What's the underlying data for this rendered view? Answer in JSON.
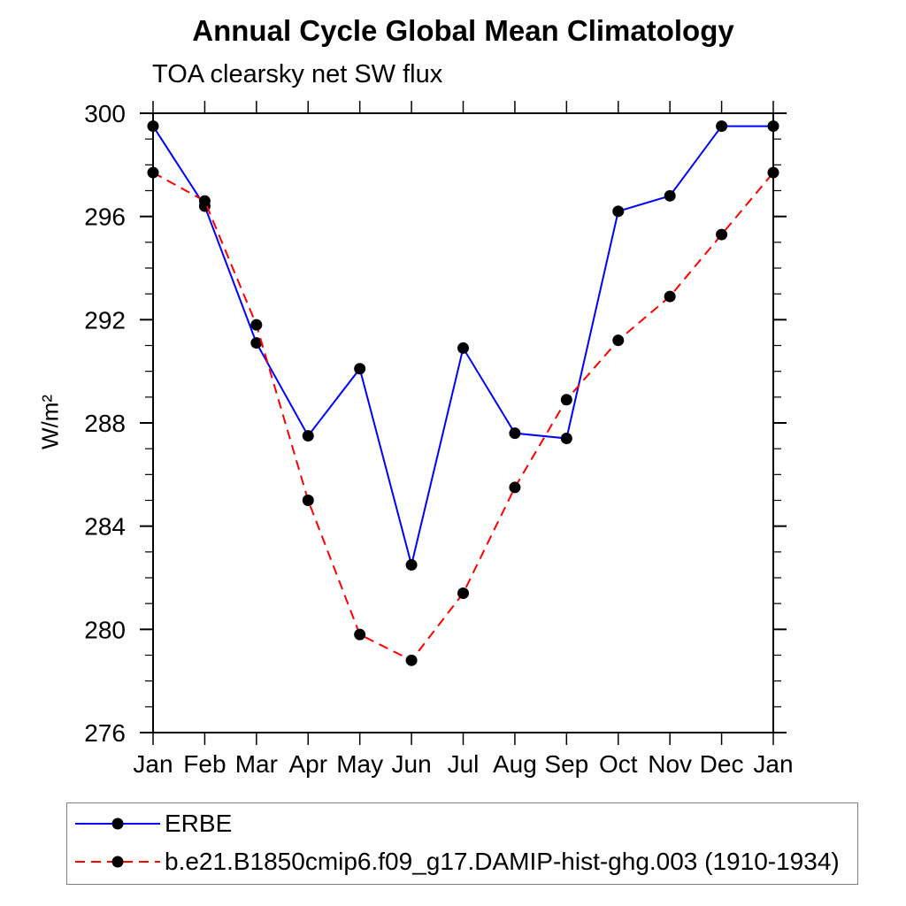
{
  "chart_data": {
    "type": "line",
    "title": "Annual Cycle Global Mean Climatology",
    "subtitle": "TOA clearsky net SW flux",
    "ylabel": "W/m²",
    "categories": [
      "Jan",
      "Feb",
      "Mar",
      "Apr",
      "May",
      "Jun",
      "Jul",
      "Aug",
      "Sep",
      "Oct",
      "Nov",
      "Dec",
      "Jan"
    ],
    "ylim": [
      276,
      300
    ],
    "ytick_major": 4,
    "ytick_minor": 1,
    "grid": false,
    "legend_position": "bottom-outside-boxed",
    "marker": {
      "shape": "circle",
      "color": "#000000",
      "radius_px": 6.5
    },
    "series": [
      {
        "name": "ERBE",
        "color": "#0000ff",
        "line_style": "solid",
        "values": [
          299.5,
          296.4,
          291.1,
          287.5,
          290.1,
          282.5,
          290.9,
          287.6,
          287.4,
          296.2,
          296.8,
          299.5,
          299.5
        ]
      },
      {
        "name": "b.e21.B1850cmip6.f09_g17.DAMIP-hist-ghg.003 (1910-1934)",
        "color": "#ff0000",
        "line_style": "dashed",
        "values": [
          297.7,
          296.6,
          291.8,
          285.0,
          279.8,
          278.8,
          281.4,
          285.5,
          288.9,
          291.2,
          292.9,
          295.3,
          297.7
        ]
      }
    ],
    "axis_color": "#000000"
  }
}
